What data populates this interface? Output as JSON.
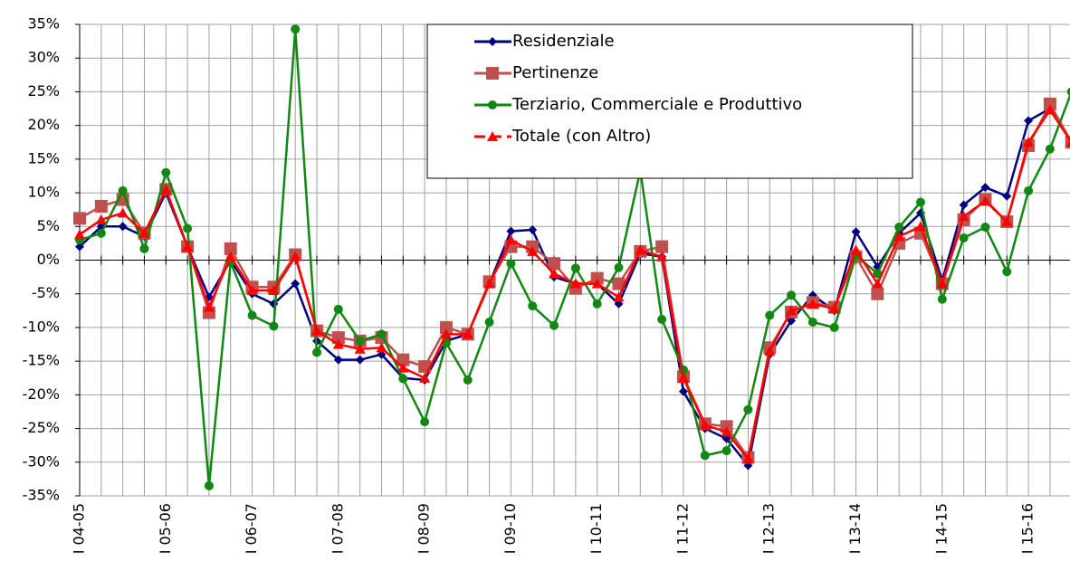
{
  "chart_data": {
    "type": "line",
    "categories": [
      "I 04-05",
      null,
      null,
      null,
      "I 05-06",
      null,
      null,
      null,
      "I 06-07",
      null,
      null,
      null,
      "I 07-08",
      null,
      null,
      null,
      "I 08-09",
      null,
      null,
      null,
      "I 09-10",
      null,
      null,
      null,
      "I 10-11",
      null,
      null,
      null,
      "I 11-12",
      null,
      null,
      null,
      "I 12-13",
      null,
      null,
      null,
      "I 13-14",
      null,
      null,
      null,
      "I 14-15",
      null,
      null,
      null,
      "I 15-16",
      null,
      null
    ],
    "series": [
      {
        "name": "Residenziale",
        "color": "#000080",
        "marker": "diamond",
        "values": [
          2,
          5,
          5,
          3.5,
          10,
          2,
          -5.5,
          0,
          -5,
          -6.5,
          -3.5,
          -12,
          -14.8,
          -14.8,
          -14,
          -17.5,
          -17.8,
          -12,
          -11,
          -3.5,
          4.3,
          4.5,
          -2.5,
          -3.5,
          -3.5,
          -6.5,
          1,
          0.5,
          -19.5,
          -25,
          -26.5,
          -30.5,
          -14,
          -9,
          -5.2,
          -7.5,
          4.2,
          -1,
          4,
          7,
          -3,
          8.2,
          10.8,
          9.5,
          20.7,
          22.5,
          17.5
        ]
      },
      {
        "name": "Pertinenze",
        "color": "#c0504d",
        "marker": "square",
        "values": [
          6.2,
          8,
          9,
          4,
          10.5,
          2,
          -7.8,
          1.7,
          -4,
          -4,
          0.8,
          -10.5,
          -11.5,
          -12,
          -11.5,
          -14.8,
          -15.8,
          -10,
          -11,
          -3.2,
          2,
          2,
          -0.5,
          -4.2,
          -2.7,
          -3.5,
          1.3,
          2,
          -17.3,
          -24.3,
          -24.7,
          -29.3,
          -13,
          -7.7,
          -6.3,
          -7,
          0.5,
          -5,
          2.5,
          4,
          -3.5,
          6,
          9,
          5.7,
          17,
          23.2,
          17.5
        ]
      },
      {
        "name": "Terziario, Commerciale e Produttivo",
        "color": "#118811",
        "marker": "circle",
        "values": [
          3,
          4,
          10.3,
          1.7,
          13,
          4.7,
          -33.5,
          -0.3,
          -8.2,
          -9.8,
          34.3,
          -13.7,
          -7.3,
          -12,
          -11,
          -17.6,
          -24,
          -12.3,
          -17.8,
          -9.2,
          -0.5,
          -6.8,
          -9.7,
          -1.2,
          -6.5,
          -1.1,
          13.3,
          -8.8,
          -16.3,
          -29,
          -28.3,
          -22.2,
          -8.2,
          -5.2,
          -9.2,
          -10,
          0.7,
          -2,
          4.9,
          8.6,
          -5.8,
          3.3,
          4.9,
          -1.7,
          10.3,
          16.5,
          25
        ]
      },
      {
        "name": "Totale (con Altro)",
        "color": "#ff0000",
        "marker": "triangle",
        "values": [
          3.8,
          6,
          7,
          4,
          10.5,
          2,
          -7,
          0.5,
          -4.5,
          -4.5,
          0.5,
          -10.5,
          -12.5,
          -13.2,
          -13,
          -16,
          -17.5,
          -11,
          -11,
          -3.5,
          3,
          1.3,
          -2,
          -3.5,
          -3.5,
          -5.5,
          1.5,
          0.5,
          -17.5,
          -24.5,
          -25.5,
          -29.5,
          -13.5,
          -7.5,
          -6.5,
          -7.2,
          1.5,
          -3.5,
          3.5,
          5,
          -3.5,
          6.5,
          8.8,
          5.7,
          17.5,
          22.3,
          17.5
        ]
      }
    ],
    "ylim": [
      -35,
      35
    ],
    "yticks": [
      {
        "value": -35,
        "label": "-35%"
      },
      {
        "value": -30,
        "label": "-30%"
      },
      {
        "value": -25,
        "label": "-25%"
      },
      {
        "value": -20,
        "label": "-20%"
      },
      {
        "value": -15,
        "label": "-15%"
      },
      {
        "value": -10,
        "label": "-10%"
      },
      {
        "value": -5,
        "label": "-5%"
      },
      {
        "value": 0,
        "label": "0%"
      },
      {
        "value": 5,
        "label": "5%"
      },
      {
        "value": 10,
        "label": "10%"
      },
      {
        "value": 15,
        "label": "15%"
      },
      {
        "value": 20,
        "label": "20%"
      },
      {
        "value": 25,
        "label": "25%"
      },
      {
        "value": 30,
        "label": "30%"
      },
      {
        "value": 35,
        "label": "35%"
      }
    ],
    "grid": true,
    "legend": "upper center"
  }
}
